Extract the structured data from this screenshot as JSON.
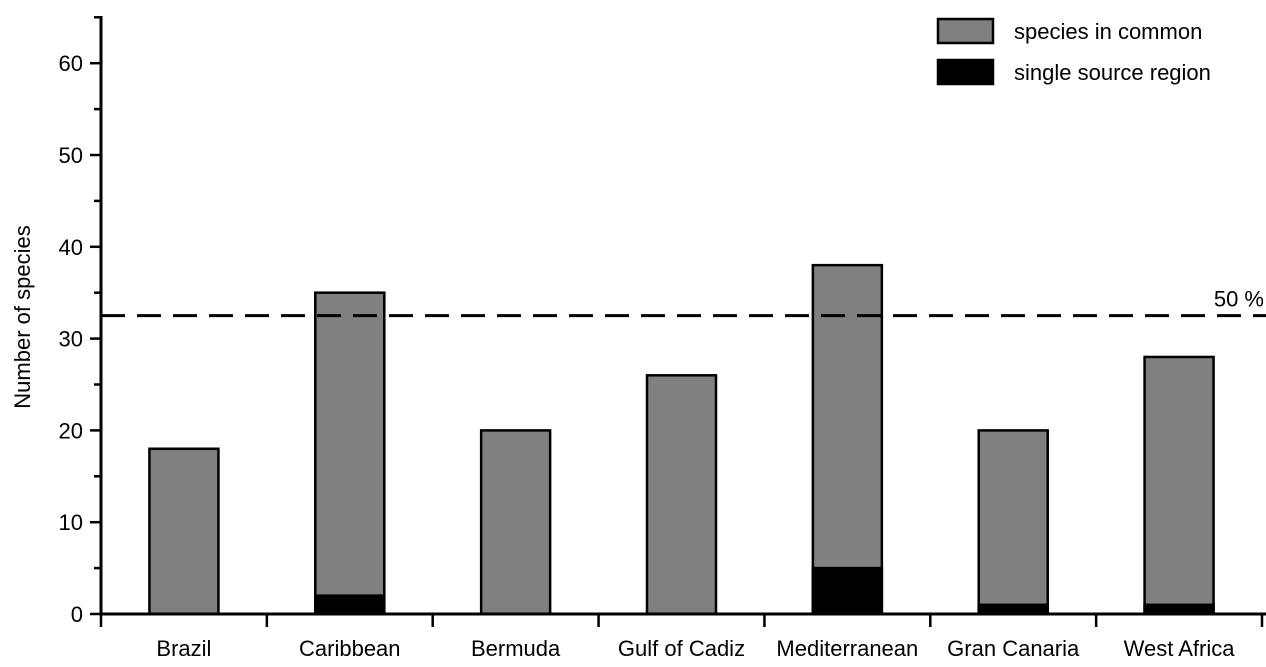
{
  "chart_data": {
    "type": "bar",
    "stacked": true,
    "categories": [
      "Brazil",
      "Caribbean",
      "Bermuda",
      "Gulf of Cadiz",
      "Mediterranean",
      "Gran Canaria",
      "West Africa"
    ],
    "series": [
      {
        "name": "species in common",
        "values": [
          18,
          35,
          20,
          26,
          38,
          20,
          28
        ],
        "color": "#808080"
      },
      {
        "name": "single source region",
        "values": [
          0,
          2,
          0,
          0,
          5,
          1,
          1
        ],
        "color": "#000000"
      }
    ],
    "title": "",
    "xlabel": "",
    "ylabel": "Number of species",
    "ylim": [
      0,
      65
    ],
    "yticks": [
      0,
      10,
      20,
      30,
      40,
      50,
      60
    ],
    "grid": false,
    "legend_position": "top-right",
    "reference_line": {
      "value": 32.5,
      "label": "50 %",
      "style": "dashed"
    }
  }
}
